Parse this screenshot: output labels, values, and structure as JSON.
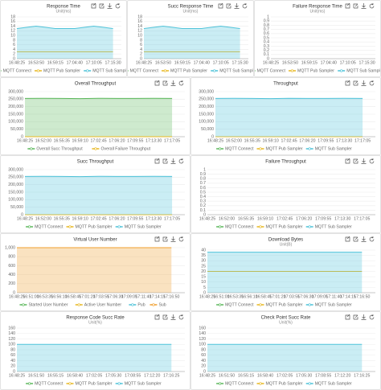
{
  "chart_data": [
    {
      "type": "line",
      "title": "Response Time",
      "subtitle": "Unit(ms)",
      "categories": [
        "16:48:25",
        "16:53:50",
        "16:59:15",
        "17:04:40",
        "17:10:05",
        "17:15:30"
      ],
      "series": [
        {
          "name": "MQTT Connect",
          "color": "#5cb85c",
          "values": [
            null,
            null,
            null,
            null,
            null,
            null
          ]
        },
        {
          "name": "MQTT Pub Sampler",
          "color": "#e8b923",
          "values": [
            3,
            3,
            3,
            3,
            3,
            3
          ]
        },
        {
          "name": "MQTT Sub Sampler",
          "color": "#4fc3d9",
          "area": true,
          "values": [
            13,
            14,
            13,
            13,
            14,
            13
          ]
        }
      ],
      "ylim": [
        0,
        18
      ],
      "yticks": [
        0,
        2,
        4,
        6,
        8,
        10,
        12,
        14,
        16,
        18
      ],
      "grid": true,
      "legend": "bottom"
    },
    {
      "type": "line",
      "title": "Succ Response Time",
      "subtitle": "Unit(ms)",
      "categories": [
        "16:48:25",
        "16:53:50",
        "16:59:15",
        "17:04:40",
        "17:10:05",
        "17:15:30"
      ],
      "series": [
        {
          "name": "MQTT Connect",
          "color": "#5cb85c",
          "values": [
            null,
            null,
            null,
            null,
            null,
            null
          ]
        },
        {
          "name": "MQTT Pub Sampler",
          "color": "#e8b923",
          "values": [
            3,
            3,
            3,
            3,
            3,
            3
          ]
        },
        {
          "name": "MQTT Sub Sampler",
          "color": "#4fc3d9",
          "area": true,
          "values": [
            13,
            14,
            13,
            13,
            14,
            13
          ]
        }
      ],
      "ylim": [
        0,
        18
      ],
      "yticks": [
        0,
        2,
        4,
        6,
        8,
        10,
        12,
        14,
        16,
        18
      ],
      "grid": true,
      "legend": "bottom"
    },
    {
      "type": "line",
      "title": "Failure Response Time",
      "subtitle": "Unit(ms)",
      "categories": [
        "16:48:25",
        "16:53:50",
        "16:59:15",
        "17:04:40",
        "17:10:05",
        "17:15:30"
      ],
      "series": [
        {
          "name": "MQTT Connect",
          "color": "#5cb85c",
          "values": [
            null,
            null,
            null,
            null,
            null,
            null
          ]
        },
        {
          "name": "MQTT Pub Sampler",
          "color": "#e8b923",
          "values": [
            null,
            null,
            null,
            null,
            null,
            null
          ]
        },
        {
          "name": "MQTT Sub Sampler",
          "color": "#4fc3d9",
          "values": [
            null,
            null,
            null,
            null,
            null,
            null
          ]
        }
      ],
      "ylim": [
        0,
        1
      ],
      "yticks": [
        0,
        0.1,
        0.2,
        0.3,
        0.4,
        0.5,
        0.6,
        0.7,
        0.8,
        0.9,
        1
      ],
      "grid": true,
      "legend": "bottom"
    },
    {
      "type": "line",
      "title": "Overall Throughput",
      "categories": [
        "16:48:25",
        "16:52:00",
        "16:55:35",
        "16:59:10",
        "17:02:45",
        "17:06:20",
        "17:09:55",
        "17:13:30",
        "17:17:05"
      ],
      "series": [
        {
          "name": "Overall Succ Throughput",
          "color": "#5cb85c",
          "area": true,
          "values": [
            255000,
            256000,
            255000,
            254000,
            256000,
            255000,
            255000,
            256000,
            255000
          ]
        },
        {
          "name": "Overall Failure Throughput",
          "color": "#e8b923",
          "values": [
            0,
            0,
            0,
            0,
            0,
            0,
            0,
            0,
            0
          ]
        }
      ],
      "ylim": [
        0,
        300000
      ],
      "yticks": [
        0,
        {
          "value": 50000,
          "label": "50,000"
        },
        {
          "value": 100000,
          "label": "100,000"
        },
        {
          "value": 150000,
          "label": "150,000"
        },
        {
          "value": 200000,
          "label": "200,000"
        },
        {
          "value": 250000,
          "label": "250,000"
        },
        {
          "value": 300000,
          "label": "300,000"
        }
      ],
      "grid": true,
      "legend": "bottom"
    },
    {
      "type": "line",
      "title": "Throughput",
      "categories": [
        "16:48:25",
        "16:52:00",
        "16:55:35",
        "16:59:10",
        "17:02:45",
        "17:06:20",
        "17:09:55",
        "17:13:30",
        "17:17:05"
      ],
      "series": [
        {
          "name": "MQTT Connect",
          "color": "#5cb85c",
          "values": [
            null,
            null,
            null,
            null,
            null,
            null,
            null,
            null,
            null
          ]
        },
        {
          "name": "MQTT Pub Sampler",
          "color": "#e8b923",
          "values": [
            0,
            0,
            0,
            0,
            0,
            0,
            0,
            0,
            0
          ]
        },
        {
          "name": "MQTT Sub Sampler",
          "color": "#4fc3d9",
          "area": true,
          "values": [
            255000,
            256000,
            255000,
            254000,
            256000,
            255000,
            255000,
            256000,
            255000
          ]
        }
      ],
      "ylim": [
        0,
        300000
      ],
      "yticks": [
        0,
        {
          "value": 50000,
          "label": "50,000"
        },
        {
          "value": 100000,
          "label": "100,000"
        },
        {
          "value": 150000,
          "label": "150,000"
        },
        {
          "value": 200000,
          "label": "200,000"
        },
        {
          "value": 250000,
          "label": "250,000"
        },
        {
          "value": 300000,
          "label": "300,000"
        }
      ],
      "grid": true,
      "legend": "bottom"
    },
    {
      "type": "line",
      "title": "Succ Throughput",
      "categories": [
        "16:48:25",
        "16:52:00",
        "16:55:35",
        "16:59:10",
        "17:02:45",
        "17:06:20",
        "17:09:55",
        "17:13:30",
        "17:17:05"
      ],
      "series": [
        {
          "name": "MQTT Connect",
          "color": "#5cb85c",
          "values": [
            null,
            null,
            null,
            null,
            null,
            null,
            null,
            null,
            null
          ]
        },
        {
          "name": "MQTT Pub Sampler",
          "color": "#e8b923",
          "values": [
            0,
            0,
            0,
            0,
            0,
            0,
            0,
            0,
            0
          ]
        },
        {
          "name": "MQTT Sub Sampler",
          "color": "#4fc3d9",
          "area": true,
          "values": [
            255000,
            256000,
            255000,
            254000,
            256000,
            255000,
            255000,
            256000,
            255000
          ]
        }
      ],
      "ylim": [
        0,
        300000
      ],
      "yticks": [
        0,
        {
          "value": 50000,
          "label": "50,000"
        },
        {
          "value": 100000,
          "label": "100,000"
        },
        {
          "value": 150000,
          "label": "150,000"
        },
        {
          "value": 200000,
          "label": "200,000"
        },
        {
          "value": 250000,
          "label": "250,000"
        },
        {
          "value": 300000,
          "label": "300,000"
        }
      ],
      "grid": true,
      "legend": "bottom"
    },
    {
      "type": "line",
      "title": "Failure Throughput",
      "categories": [
        "16:48:25",
        "16:52:00",
        "16:55:35",
        "16:59:10",
        "17:02:45",
        "17:06:20",
        "17:09:55",
        "17:13:30",
        "17:17:05"
      ],
      "series": [
        {
          "name": "MQTT Connect",
          "color": "#5cb85c",
          "values": [
            null,
            null,
            null,
            null,
            null,
            null,
            null,
            null,
            null
          ]
        },
        {
          "name": "MQTT Pub Sampler",
          "color": "#e8b923",
          "values": [
            null,
            null,
            null,
            null,
            null,
            null,
            null,
            null,
            null
          ]
        },
        {
          "name": "MQTT Sub Sampler",
          "color": "#4fc3d9",
          "values": [
            null,
            null,
            null,
            null,
            null,
            null,
            null,
            null,
            null
          ]
        }
      ],
      "ylim": [
        0,
        1
      ],
      "yticks": [
        0,
        0.1,
        0.2,
        0.3,
        0.4,
        0.5,
        0.6,
        0.7,
        0.8,
        0.9,
        1
      ],
      "grid": true,
      "legend": "bottom"
    },
    {
      "type": "line",
      "title": "Virtual User Number",
      "categories": [
        "16:48:25",
        "16:51:00",
        "16:53:35",
        "16:56:10",
        "16:58:45",
        "17:01:20",
        "17:03:55",
        "17:06:30",
        "17:09:05",
        "17:11:40",
        "17:14:15",
        "17:16:50"
      ],
      "series": [
        {
          "name": "Started User Number",
          "color": "#5cb85c",
          "values": [
            null,
            null,
            null,
            null,
            null,
            null,
            null,
            null,
            null,
            null,
            null,
            null
          ]
        },
        {
          "name": "Active User Number",
          "color": "#e8b923",
          "values": [
            null,
            null,
            null,
            null,
            null,
            null,
            null,
            null,
            null,
            null,
            null,
            null
          ]
        },
        {
          "name": "Pub",
          "color": "#4fc3d9",
          "values": [
            null,
            null,
            null,
            null,
            null,
            null,
            null,
            null,
            null,
            null,
            null,
            null
          ]
        },
        {
          "name": "Sub",
          "color": "#f0a030",
          "area": true,
          "values": [
            1000,
            1000,
            1000,
            1000,
            1000,
            1000,
            1000,
            1000,
            1000,
            1000,
            1000,
            1000
          ]
        }
      ],
      "ylim": [
        0,
        1000
      ],
      "yticks": [
        0,
        200,
        400,
        600,
        800,
        {
          "value": 1000,
          "label": "1,000"
        }
      ],
      "grid": true,
      "legend": "bottom"
    },
    {
      "type": "line",
      "title": "Download Bytes",
      "subtitle": "Unit(B)",
      "categories": [
        "16:48:25",
        "16:51:00",
        "16:53:35",
        "16:56:10",
        "16:58:45",
        "17:01:20",
        "17:03:55",
        "17:06:30",
        "17:09:05",
        "17:11:40",
        "17:14:15",
        "17:16:50"
      ],
      "series": [
        {
          "name": "MQTT Connect",
          "color": "#5cb85c",
          "values": [
            null,
            null,
            null,
            null,
            null,
            null,
            null,
            null,
            null,
            null,
            null,
            null
          ]
        },
        {
          "name": "MQTT Pub Sampler",
          "color": "#e8b923",
          "values": [
            20,
            20,
            20,
            20,
            20,
            20,
            20,
            20,
            20,
            20,
            20,
            20
          ]
        },
        {
          "name": "MQTT Sub Sampler",
          "color": "#4fc3d9",
          "area": true,
          "values": [
            38,
            38,
            38,
            38,
            38,
            38,
            38,
            38,
            38,
            38,
            38,
            38
          ]
        }
      ],
      "ylim": [
        0,
        40
      ],
      "yticks": [
        0,
        5,
        10,
        15,
        20,
        25,
        30,
        35,
        40
      ],
      "grid": true,
      "legend": "bottom"
    },
    {
      "type": "line",
      "title": "Response Code Succ Rate",
      "subtitle": "Unit(%)",
      "categories": [
        "16:48:25",
        "16:51:50",
        "16:55:15",
        "16:58:40",
        "17:02:05",
        "17:05:30",
        "17:08:55",
        "17:12:20",
        "17:16:25"
      ],
      "series": [
        {
          "name": "MQTT Connect",
          "color": "#5cb85c",
          "values": [
            null,
            null,
            null,
            null,
            null,
            null,
            null,
            null,
            null
          ]
        },
        {
          "name": "MQTT Pub Sampler",
          "color": "#e8b923",
          "values": [
            null,
            null,
            null,
            null,
            null,
            null,
            null,
            null,
            null
          ]
        },
        {
          "name": "MQTT Sub Sampler",
          "color": "#4fc3d9",
          "area": true,
          "values": [
            100,
            100,
            100,
            100,
            100,
            100,
            100,
            100,
            100
          ]
        }
      ],
      "ylim": [
        0,
        160
      ],
      "yticks": [
        0,
        20,
        40,
        60,
        80,
        100,
        120,
        140,
        160
      ],
      "grid": true,
      "legend": "bottom"
    },
    {
      "type": "line",
      "title": "Check Point Succ Rate",
      "subtitle": "Unit(%)",
      "categories": [
        "16:48:25",
        "16:51:50",
        "16:55:15",
        "16:58:40",
        "17:02:05",
        "17:05:30",
        "17:08:55",
        "17:12:20",
        "17:16:25"
      ],
      "series": [
        {
          "name": "MQTT Connect",
          "color": "#5cb85c",
          "values": [
            null,
            null,
            null,
            null,
            null,
            null,
            null,
            null,
            null
          ]
        },
        {
          "name": "MQTT Pub Sampler",
          "color": "#e8b923",
          "values": [
            null,
            null,
            null,
            null,
            null,
            null,
            null,
            null,
            null
          ]
        },
        {
          "name": "MQTT Sub Sampler",
          "color": "#4fc3d9",
          "area": true,
          "values": [
            100,
            100,
            100,
            100,
            100,
            100,
            100,
            100,
            100
          ]
        }
      ],
      "ylim": [
        0,
        160
      ],
      "yticks": [
        0,
        20,
        40,
        60,
        80,
        100,
        120,
        140,
        160
      ],
      "grid": true,
      "legend": "bottom"
    }
  ]
}
